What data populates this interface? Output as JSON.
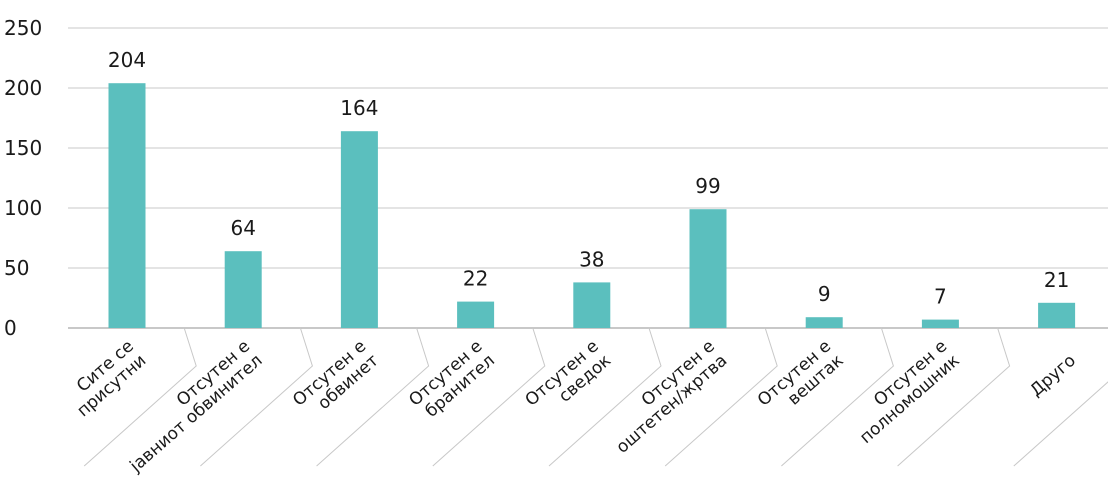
{
  "chart_data": {
    "type": "bar",
    "categories": [
      "Сите се\nприсутни",
      "Отсутен е\njавниот обвинител",
      "Отсутен е\nобвинет",
      "Отсутен е\nбранител",
      "Отсутен е\nсведок",
      "Отсутен е\nоштетен/жртва",
      "Отсутен е\nвештак",
      "Отсутен е\nполномошник",
      "Друго"
    ],
    "values": [
      204,
      64,
      164,
      22,
      38,
      99,
      9,
      7,
      21
    ],
    "yticks": [
      0,
      50,
      100,
      150,
      200,
      250
    ],
    "ylim": [
      0,
      250
    ],
    "grid": true,
    "bar_color": "#5bbfbe",
    "title": "",
    "xlabel": "",
    "ylabel": ""
  }
}
